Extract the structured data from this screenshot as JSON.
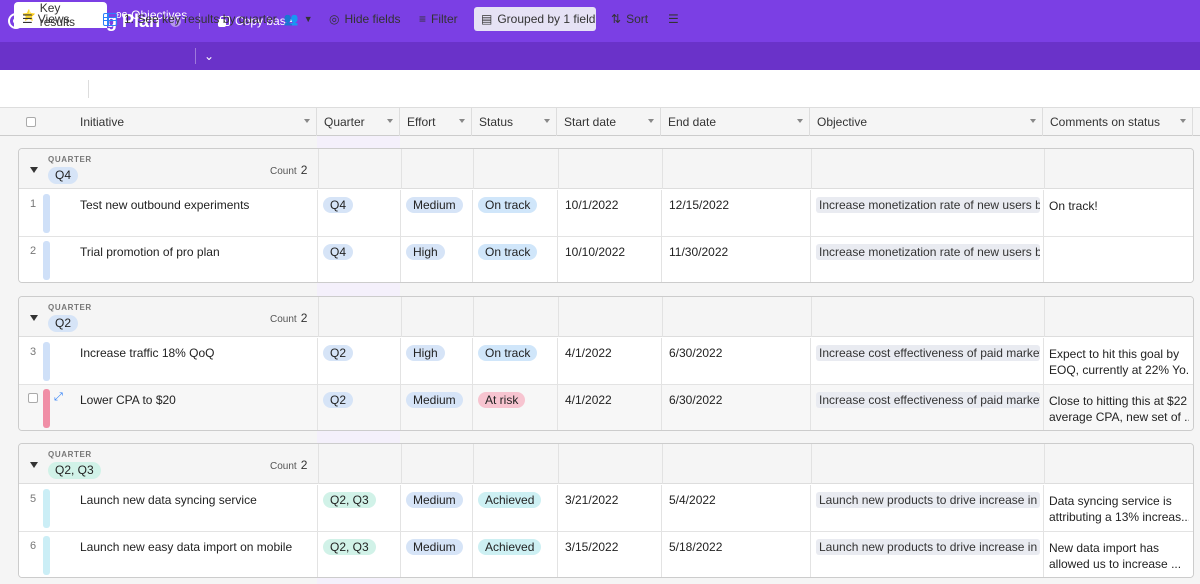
{
  "app": {
    "title": "Marketing Plan",
    "copy_base_label": "Copy base",
    "accent": "#7b3fe4"
  },
  "tabs": [
    {
      "icon": "star-icon",
      "label": "Key results"
    },
    {
      "icon": "objectives-icon",
      "label": "Objectives"
    }
  ],
  "toolbar": {
    "views_label": "Views",
    "view_name": "1. See key results by quarter",
    "hide_fields_label": "Hide fields",
    "filter_label": "Filter",
    "grouped_label": "Grouped by 1 field",
    "sort_label": "Sort"
  },
  "columns": [
    "Initiative",
    "Quarter",
    "Effort",
    "Status",
    "Start date",
    "End date",
    "Objective",
    "Comments on status"
  ],
  "group_label": "QUARTER",
  "count_label": "Count",
  "groups": [
    {
      "value": "Q4",
      "count": "2",
      "rows": [
        {
          "num": "1",
          "initiative": "Test new outbound experiments",
          "quarter": "Q4",
          "effort": "Medium",
          "status": "On track",
          "start": "10/1/2022",
          "end": "12/15/2022",
          "objective": "Increase monetization rate of new users by ",
          "comment1": "On track!",
          "comment2": ""
        },
        {
          "num": "2",
          "initiative": "Trial promotion of pro plan",
          "quarter": "Q4",
          "effort": "High",
          "status": "On track",
          "start": "10/10/2022",
          "end": "11/30/2022",
          "objective": "Increase monetization rate of new users by ",
          "comment1": "",
          "comment2": ""
        }
      ]
    },
    {
      "value": "Q2",
      "count": "2",
      "rows": [
        {
          "num": "3",
          "initiative": "Increase traffic 18% QoQ",
          "quarter": "Q2",
          "effort": "High",
          "status": "On track",
          "start": "4/1/2022",
          "end": "6/30/2022",
          "objective": "Increase cost effectiveness of paid marketin",
          "comment1": "Expect to hit this goal by",
          "comment2": "EOQ, currently at 22% Yo..."
        },
        {
          "num": "",
          "initiative": "Lower CPA to $20",
          "quarter": "Q2",
          "effort": "Medium",
          "status": "At risk",
          "start": "4/1/2022",
          "end": "6/30/2022",
          "objective": "Increase cost effectiveness of paid marketin",
          "comment1": "Close to hitting this at $22",
          "comment2": "average CPA, new set of ..."
        }
      ]
    },
    {
      "value": "Q2, Q3",
      "count": "2",
      "rows": [
        {
          "num": "5",
          "initiative": "Launch new data syncing service",
          "quarter": "Q2, Q3",
          "effort": "Medium",
          "status": "Achieved",
          "start": "3/21/2022",
          "end": "5/4/2022",
          "objective": "Launch new products to drive increase in pr",
          "comment1": "Data syncing service is",
          "comment2": "attributing a 13% increas..."
        },
        {
          "num": "6",
          "initiative": "Launch new easy data import on mobile",
          "quarter": "Q2, Q3",
          "effort": "Medium",
          "status": "Achieved",
          "start": "3/15/2022",
          "end": "5/18/2022",
          "objective": "Launch new products to drive increase in pr",
          "comment1": "New data import has",
          "comment2": "allowed us to increase ..."
        }
      ]
    }
  ],
  "colors": {
    "q4": "#d6e4f7",
    "q2": "#d6e4f7",
    "q2q3": "#d1f2e8",
    "medium": "#d6e4f7",
    "high": "#d6e4f7",
    "on_track": "#d0e6fa",
    "at_risk": "#f7c4d0",
    "achieved": "#cdf0f3",
    "bar_blue": "#cfe0f8",
    "bar_pink": "#f08ea6",
    "bar_teal": "#cbeef6"
  }
}
